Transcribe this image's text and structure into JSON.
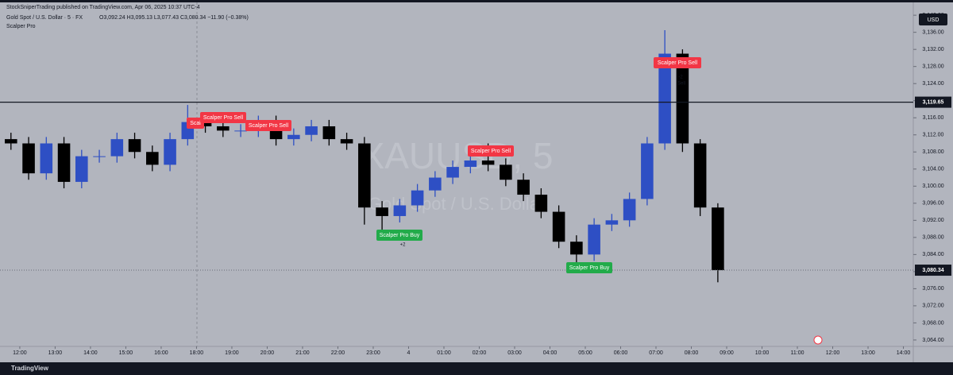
{
  "header": {
    "publisher": "StockSniperTrading published on TradingView.com, Apr 06, 2025 10:37 UTC-4",
    "symbol": "Gold Spot / U.S. Dollar · 5 · FX",
    "ohlc": "O3,092.24 H3,095.13 L3,077.43 C3,080.34 −11.90 (−0.38%)",
    "indicator": "Scalper Pro"
  },
  "currency": "USD",
  "watermark": {
    "symbol": "XAUUSD, 5",
    "name": "Gold Spot / U.S. Dollar"
  },
  "footer": "TradingView",
  "chart_data": {
    "type": "candlestick",
    "x": [
      -0.25,
      0.25,
      0.75,
      1.25,
      1.75,
      2.25,
      2.75,
      3.25,
      3.75,
      4.25,
      4.75,
      5.25,
      5.75,
      6.25,
      6.75,
      7.25,
      7.75,
      8.25,
      8.75,
      9.25,
      9.75,
      10.25,
      10.75,
      11.25,
      11.75,
      12.25,
      12.75,
      13.25,
      13.75,
      14.25,
      14.75,
      15.25,
      15.75,
      16.25,
      16.75,
      17.25,
      17.75,
      18.25,
      18.75,
      19.25,
      19.75
    ],
    "open": [
      3111,
      3110,
      3103,
      3110,
      3101,
      3107,
      3107,
      3111,
      3108,
      3105,
      3111,
      3115,
      3114,
      3113,
      3113,
      3115,
      3111,
      3112,
      3114,
      3111,
      3110,
      3095,
      3093,
      3095.5,
      3099,
      3102,
      3104.5,
      3106,
      3105,
      3101.5,
      3098,
      3094,
      3087,
      3084,
      3091,
      3092,
      3097,
      3110,
      3131,
      3110,
      3095
    ],
    "high": [
      3112.5,
      3111.5,
      3111.5,
      3111.5,
      3108.5,
      3108.5,
      3112.5,
      3112.5,
      3109.5,
      3112.5,
      3119,
      3116.5,
      3115.5,
      3114.5,
      3116.5,
      3116.5,
      3113.5,
      3115.5,
      3115.5,
      3112.5,
      3111.5,
      3096.5,
      3097,
      3100.5,
      3103.5,
      3106,
      3108,
      3110,
      3106.5,
      3103,
      3099.5,
      3095.5,
      3088.5,
      3092.5,
      3093.5,
      3098.5,
      3111.5,
      3136.5,
      3132,
      3111,
      3096
    ],
    "low": [
      3108.5,
      3101.5,
      3101.5,
      3099.5,
      3099.5,
      3105.5,
      3105.5,
      3106.5,
      3103.5,
      3103.5,
      3109.5,
      3112.5,
      3111.5,
      3111.5,
      3111.5,
      3109.5,
      3109.5,
      3110.5,
      3109.5,
      3108.5,
      3091,
      3089.5,
      3091.5,
      3094,
      3097.5,
      3100.5,
      3103,
      3103.5,
      3100,
      3096.5,
      3092.5,
      3085.5,
      3080.5,
      3082.5,
      3089.5,
      3090.5,
      3095.5,
      3108.5,
      3108,
      3093,
      3077.5
    ],
    "close": [
      3110,
      3103,
      3110,
      3101,
      3107,
      3107,
      3111,
      3108,
      3105,
      3111,
      3115,
      3114,
      3113,
      3113,
      3115,
      3111,
      3112,
      3114,
      3111,
      3110,
      3095,
      3093,
      3095.5,
      3099,
      3102,
      3104.5,
      3106,
      3105,
      3101.5,
      3098,
      3094,
      3087,
      3084,
      3091,
      3092,
      3097,
      3110,
      3131,
      3110,
      3095,
      3080.34
    ],
    "up_color": "#2e4fc4",
    "down_color": "#000000",
    "xlim": [
      -0.56,
      25.28
    ],
    "xticks": [
      {
        "value": 0,
        "label": "12:00"
      },
      {
        "value": 1,
        "label": "13:00"
      },
      {
        "value": 2,
        "label": "14:00"
      },
      {
        "value": 3,
        "label": "15:00"
      },
      {
        "value": 4,
        "label": "16:00"
      },
      {
        "value": 5,
        "label": "18:00"
      },
      {
        "value": 6,
        "label": "19:00"
      },
      {
        "value": 7,
        "label": "20:00"
      },
      {
        "value": 8,
        "label": "21:00"
      },
      {
        "value": 9,
        "label": "22:00"
      },
      {
        "value": 10,
        "label": "23:00"
      },
      {
        "value": 11,
        "label": "4"
      },
      {
        "value": 12,
        "label": "01:00"
      },
      {
        "value": 13,
        "label": "02:00"
      },
      {
        "value": 14,
        "label": "03:00"
      },
      {
        "value": 15,
        "label": "04:00"
      },
      {
        "value": 16,
        "label": "05:00"
      },
      {
        "value": 17,
        "label": "06:00"
      },
      {
        "value": 18,
        "label": "07:00"
      },
      {
        "value": 19,
        "label": "08:00"
      },
      {
        "value": 20,
        "label": "09:00"
      },
      {
        "value": 21,
        "label": "10:00"
      },
      {
        "value": 22,
        "label": "11:00"
      },
      {
        "value": 23,
        "label": "12:00"
      },
      {
        "value": 24,
        "label": "13:00"
      },
      {
        "value": 25,
        "label": "14:00"
      }
    ],
    "ylim": [
      3062.5,
      3143
    ],
    "yticks": [
      {
        "value": 3064,
        "label": "3,064.00"
      },
      {
        "value": 3068,
        "label": "3,068.00"
      },
      {
        "value": 3072,
        "label": "3,072.00"
      },
      {
        "value": 3076,
        "label": "3,076.00"
      },
      {
        "value": 3080,
        "label": "3,080.00"
      },
      {
        "value": 3084,
        "label": "3,084.00"
      },
      {
        "value": 3088,
        "label": "3,088.00"
      },
      {
        "value": 3092,
        "label": "3,092.00"
      },
      {
        "value": 3096,
        "label": "3,096.00"
      },
      {
        "value": 3100,
        "label": "3,100.00"
      },
      {
        "value": 3104,
        "label": "3,104.00"
      },
      {
        "value": 3108,
        "label": "3,108.00"
      },
      {
        "value": 3112,
        "label": "3,112.00"
      },
      {
        "value": 3116,
        "label": "3,116.00"
      },
      {
        "value": 3120,
        "label": "3,120.00"
      },
      {
        "value": 3124,
        "label": "3,124.00"
      },
      {
        "value": 3128,
        "label": "3,128.00"
      },
      {
        "value": 3132,
        "label": "3,132.00"
      },
      {
        "value": 3136,
        "label": "3,136.00"
      },
      {
        "value": 3140,
        "label": "3,140.00"
      }
    ],
    "hline": {
      "value": 3119.65,
      "label": "3,119.65"
    },
    "last_price": {
      "value": 3080.34,
      "label": "3,080.34"
    },
    "signals": [
      {
        "text": "Scal",
        "kind": "sell"
      },
      {
        "text": "Scalper Pro Sell",
        "kind": "sell"
      },
      {
        "text": "Scalper Pro Sell",
        "kind": "sell"
      },
      {
        "text": "Scalper Pro Sell",
        "kind": "sell"
      },
      {
        "text": "Scalper Pro Sell",
        "kind": "sell"
      },
      {
        "text": "Scalper Pro Buy",
        "kind": "buy"
      },
      {
        "text": "Scalper Pro Buy",
        "kind": "buy"
      }
    ],
    "signal_colors": {
      "sell": "#f23645",
      "buy": "#22ab4a"
    },
    "notes": [
      "+2",
      "-2",
      "Sell"
    ]
  }
}
